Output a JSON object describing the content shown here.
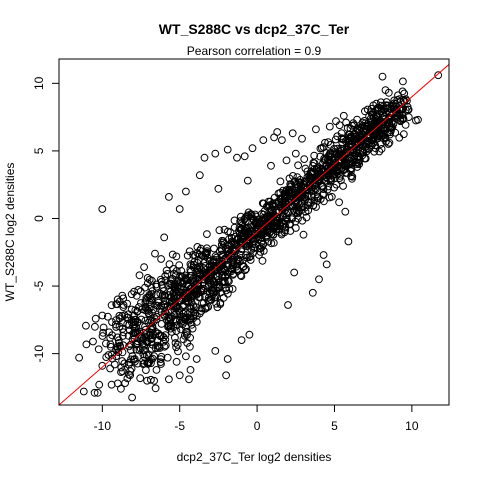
{
  "chart_data": {
    "type": "scatter",
    "title": "WT_S288C vs dcp2_37C_Ter",
    "subtitle": "Pearson correlation =  0.9",
    "xlabel": "dcp2_37C_Ter log2 densities",
    "ylabel": "WT_S288C log2 densities",
    "xlim": [
      -12.8,
      12.4
    ],
    "ylim": [
      -13.8,
      11.8
    ],
    "xticks": [
      -10,
      -5,
      0,
      5,
      10
    ],
    "yticks": [
      -10,
      -5,
      0,
      5,
      10
    ],
    "grid": false,
    "marker": "open-circle",
    "colors": {
      "points": "#000000",
      "fit_line": "#ff0000",
      "axes": "#000000"
    },
    "fit_line": {
      "slope": 1.0,
      "intercept": -1.0,
      "color": "#ff0000"
    },
    "series": [
      {
        "points": [
          [
            -10.0,
            0.7
          ],
          [
            -11.5,
            -10.3
          ],
          [
            -10.5,
            -12.9
          ],
          [
            -10.3,
            -12.9
          ],
          [
            -10.2,
            -12.3
          ],
          [
            -11.2,
            -12.8
          ],
          [
            -9.4,
            -12.3
          ],
          [
            -8.8,
            -12.6
          ],
          [
            -9.0,
            -12.2
          ],
          [
            -8.2,
            -11.6
          ],
          [
            -7.9,
            -10.4
          ],
          [
            -9.6,
            -10.1
          ],
          [
            -10.0,
            -10.9
          ],
          [
            -9.2,
            -10.8
          ],
          [
            -8.7,
            -9.9
          ],
          [
            -8.0,
            -8.5
          ],
          [
            -7.0,
            -7.0
          ],
          [
            -6.8,
            -4.6
          ],
          [
            -6.2,
            -3.0
          ],
          [
            -7.6,
            -4.2
          ],
          [
            -8.1,
            -5.6
          ],
          [
            -8.9,
            -7.2
          ],
          [
            -8.4,
            -6.3
          ],
          [
            -7.3,
            -3.6
          ],
          [
            -6.6,
            -2.6
          ],
          [
            -6.0,
            -1.4
          ],
          [
            -5.9,
            -9.4
          ],
          [
            -5.2,
            -10.6
          ],
          [
            -4.4,
            -11.9
          ],
          [
            -4.6,
            -10.2
          ],
          [
            -3.9,
            -10.4
          ],
          [
            -2.7,
            -9.8
          ],
          [
            -1.9,
            -10.4
          ],
          [
            -1.0,
            -9.0
          ],
          [
            -0.5,
            -8.6
          ],
          [
            -5.7,
            1.6
          ],
          [
            -5.0,
            0.7
          ],
          [
            -4.6,
            2.0
          ],
          [
            -3.7,
            3.2
          ],
          [
            -3.4,
            4.5
          ],
          [
            -2.7,
            4.8
          ],
          [
            -1.9,
            5.1
          ],
          [
            -1.3,
            4.5
          ],
          [
            -0.8,
            4.6
          ],
          [
            -0.3,
            5.2
          ],
          [
            0.4,
            5.8
          ],
          [
            1.1,
            6.0
          ],
          [
            1.6,
            5.8
          ],
          [
            2.3,
            6.3
          ],
          [
            2.5,
            4.8
          ],
          [
            1.9,
            4.3
          ],
          [
            0.9,
            3.9
          ],
          [
            5.4,
            4.6
          ],
          [
            6.1,
            5.3
          ],
          [
            6.7,
            5.8
          ],
          [
            7.5,
            7.8
          ],
          [
            8.0,
            8.6
          ],
          [
            8.3,
            9.5
          ],
          [
            8.1,
            10.5
          ],
          [
            9.0,
            8.3
          ],
          [
            9.8,
            7.5
          ],
          [
            9.4,
            9.4
          ],
          [
            10.4,
            7.3
          ],
          [
            11.7,
            10.6
          ],
          [
            6.4,
            4.9
          ],
          [
            7.3,
            6.2
          ],
          [
            6.1,
            3.7
          ],
          [
            5.7,
            0.5
          ],
          [
            5.9,
            -1.7
          ],
          [
            4.5,
            -3.4
          ],
          [
            4.0,
            -4.5
          ],
          [
            3.6,
            -5.5
          ],
          [
            4.3,
            -2.7
          ],
          [
            2.4,
            -4.0
          ],
          [
            2.0,
            -6.4
          ],
          [
            -2.0,
            -11.6
          ],
          [
            -4.3,
            -11.2
          ],
          [
            -5.0,
            -11.6
          ],
          [
            -5.7,
            -11.9
          ],
          [
            -7.8,
            -9.3
          ],
          [
            -8.7,
            -11.3
          ],
          [
            -9.5,
            -11.1
          ],
          [
            -10.6,
            -9.1
          ],
          [
            -6.5,
            -11.2
          ],
          [
            -7.1,
            -10.7
          ],
          [
            3.0,
            -1.2
          ],
          [
            3.3,
            0.6
          ],
          [
            1.3,
            6.4
          ],
          [
            3.8,
            6.6
          ],
          [
            4.7,
            6.8
          ],
          [
            5.1,
            7.2
          ],
          [
            5.6,
            7.6
          ],
          [
            2.9,
            5.9
          ],
          [
            3.4,
            3.0
          ],
          [
            4.6,
            3.3
          ],
          [
            5.3,
            1.2
          ],
          [
            1.5,
            1.9
          ],
          [
            -0.6,
            2.8
          ],
          [
            -2.5,
            2.2
          ]
        ]
      }
    ]
  }
}
